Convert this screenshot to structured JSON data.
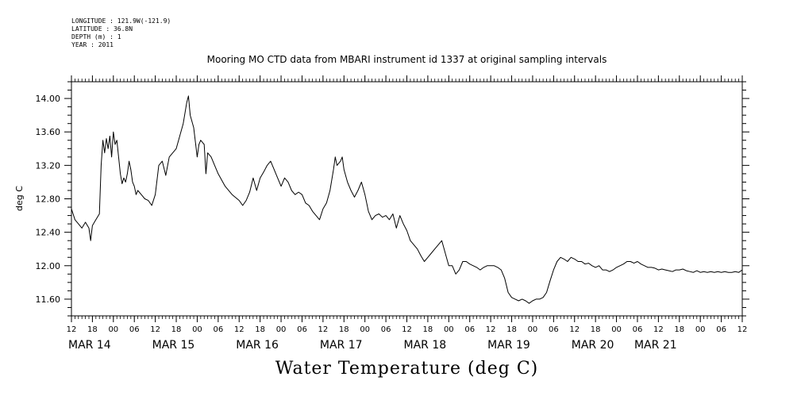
{
  "meta_lines": [
    "LONGITUDE : 121.9W(-121.9)",
    "LATITUDE : 36.8N",
    "DEPTH (m) : 1",
    "YEAR : 2011"
  ],
  "chart_data": {
    "type": "line",
    "title": "Mooring MO CTD data from MBARI instrument id 1337 at original sampling intervals",
    "xlabel": "Water Temperature (deg C)",
    "ylabel": "deg C",
    "x_units": "hours since MAR 14 00:00",
    "xlim": [
      -12,
      180
    ],
    "ylim": [
      11.4,
      14.2
    ],
    "y_ticks": [
      11.6,
      12.0,
      12.4,
      12.8,
      13.2,
      13.6,
      14.0
    ],
    "y_tick_labels": [
      "11.60",
      "12.00",
      "12.40",
      "12.80",
      "13.20",
      "13.60",
      "14.00"
    ],
    "x_hour_ticks": [
      -12,
      -6,
      0,
      6,
      12,
      18,
      24,
      30,
      36,
      42,
      48,
      54,
      60,
      66,
      72,
      78,
      84,
      90,
      96,
      102,
      108,
      114,
      120,
      126,
      132,
      138,
      144,
      150,
      156,
      162,
      168,
      174,
      180
    ],
    "x_hour_tick_labels": [
      "12",
      "18",
      "00",
      "06",
      "12",
      "18",
      "00",
      "06",
      "12",
      "18",
      "00",
      "06",
      "12",
      "18",
      "00",
      "06",
      "12",
      "18",
      "00",
      "06",
      "12",
      "18",
      "00",
      "06",
      "12",
      "18",
      "00",
      "06",
      "12",
      "18",
      "00",
      "06",
      "12"
    ],
    "date_labels": [
      {
        "x": -12,
        "label": "MAR 14"
      },
      {
        "x": 12,
        "label": "MAR 15"
      },
      {
        "x": 36,
        "label": "MAR 16"
      },
      {
        "x": 60,
        "label": "MAR 17"
      },
      {
        "x": 84,
        "label": "MAR 18"
      },
      {
        "x": 108,
        "label": "MAR 19"
      },
      {
        "x": 132,
        "label": "MAR 20"
      },
      {
        "x": 150,
        "label": "MAR 21"
      }
    ],
    "grid": false,
    "series": [
      {
        "color": "#000000",
        "points": [
          [
            -12,
            12.68
          ],
          [
            -11,
            12.55
          ],
          [
            -10,
            12.5
          ],
          [
            -9,
            12.45
          ],
          [
            -8,
            12.52
          ],
          [
            -7,
            12.45
          ],
          [
            -6.5,
            12.3
          ],
          [
            -6,
            12.48
          ],
          [
            -5,
            12.55
          ],
          [
            -4,
            12.62
          ],
          [
            -3.5,
            13.2
          ],
          [
            -3,
            13.5
          ],
          [
            -2.5,
            13.35
          ],
          [
            -2,
            13.52
          ],
          [
            -1.5,
            13.4
          ],
          [
            -1,
            13.55
          ],
          [
            -0.5,
            13.3
          ],
          [
            0,
            13.6
          ],
          [
            0.5,
            13.45
          ],
          [
            1,
            13.5
          ],
          [
            1.5,
            13.3
          ],
          [
            2,
            13.1
          ],
          [
            2.5,
            12.98
          ],
          [
            3,
            13.05
          ],
          [
            3.5,
            13.0
          ],
          [
            4,
            13.1
          ],
          [
            4.5,
            13.25
          ],
          [
            5,
            13.15
          ],
          [
            5.5,
            13.0
          ],
          [
            6,
            12.95
          ],
          [
            6.5,
            12.85
          ],
          [
            7,
            12.9
          ],
          [
            8,
            12.85
          ],
          [
            9,
            12.8
          ],
          [
            10,
            12.78
          ],
          [
            11,
            12.72
          ],
          [
            12,
            12.85
          ],
          [
            13,
            13.2
          ],
          [
            14,
            13.25
          ],
          [
            15,
            13.08
          ],
          [
            16,
            13.3
          ],
          [
            17,
            13.35
          ],
          [
            18,
            13.4
          ],
          [
            19,
            13.55
          ],
          [
            20,
            13.7
          ],
          [
            21,
            13.95
          ],
          [
            21.5,
            14.03
          ],
          [
            22,
            13.8
          ],
          [
            23,
            13.65
          ],
          [
            24,
            13.3
          ],
          [
            24.5,
            13.45
          ],
          [
            25,
            13.5
          ],
          [
            26,
            13.45
          ],
          [
            26.5,
            13.1
          ],
          [
            27,
            13.35
          ],
          [
            28,
            13.3
          ],
          [
            29,
            13.2
          ],
          [
            30,
            13.1
          ],
          [
            32,
            12.95
          ],
          [
            34,
            12.85
          ],
          [
            36,
            12.78
          ],
          [
            37,
            12.72
          ],
          [
            38,
            12.78
          ],
          [
            39,
            12.88
          ],
          [
            40,
            13.05
          ],
          [
            41,
            12.9
          ],
          [
            42,
            13.05
          ],
          [
            43,
            13.12
          ],
          [
            44,
            13.2
          ],
          [
            45,
            13.25
          ],
          [
            46,
            13.15
          ],
          [
            47,
            13.05
          ],
          [
            48,
            12.95
          ],
          [
            49,
            13.05
          ],
          [
            50,
            13.0
          ],
          [
            51,
            12.9
          ],
          [
            52,
            12.85
          ],
          [
            53,
            12.88
          ],
          [
            54,
            12.85
          ],
          [
            55,
            12.75
          ],
          [
            56,
            12.72
          ],
          [
            57,
            12.65
          ],
          [
            58,
            12.6
          ],
          [
            59,
            12.55
          ],
          [
            60,
            12.68
          ],
          [
            61,
            12.75
          ],
          [
            62,
            12.9
          ],
          [
            63,
            13.15
          ],
          [
            63.5,
            13.3
          ],
          [
            64,
            13.2
          ],
          [
            65,
            13.25
          ],
          [
            65.5,
            13.3
          ],
          [
            66,
            13.15
          ],
          [
            67,
            13.0
          ],
          [
            68,
            12.9
          ],
          [
            69,
            12.82
          ],
          [
            70,
            12.9
          ],
          [
            71,
            13.0
          ],
          [
            72,
            12.85
          ],
          [
            73,
            12.65
          ],
          [
            74,
            12.55
          ],
          [
            75,
            12.6
          ],
          [
            76,
            12.62
          ],
          [
            77,
            12.58
          ],
          [
            78,
            12.6
          ],
          [
            79,
            12.55
          ],
          [
            80,
            12.62
          ],
          [
            81,
            12.45
          ],
          [
            82,
            12.6
          ],
          [
            83,
            12.5
          ],
          [
            84,
            12.42
          ],
          [
            85,
            12.3
          ],
          [
            86,
            12.25
          ],
          [
            87,
            12.2
          ],
          [
            88,
            12.12
          ],
          [
            89,
            12.05
          ],
          [
            90,
            12.1
          ],
          [
            91,
            12.15
          ],
          [
            92,
            12.2
          ],
          [
            93,
            12.25
          ],
          [
            94,
            12.3
          ],
          [
            95,
            12.15
          ],
          [
            96,
            12.0
          ],
          [
            97,
            12.0
          ],
          [
            98,
            11.9
          ],
          [
            99,
            11.95
          ],
          [
            100,
            12.05
          ],
          [
            101,
            12.05
          ],
          [
            102,
            12.02
          ],
          [
            103,
            12.0
          ],
          [
            104,
            11.98
          ],
          [
            105,
            11.95
          ],
          [
            106,
            11.98
          ],
          [
            107,
            12.0
          ],
          [
            108,
            12.0
          ],
          [
            109,
            12.0
          ],
          [
            110,
            11.98
          ],
          [
            111,
            11.95
          ],
          [
            112,
            11.85
          ],
          [
            113,
            11.68
          ],
          [
            114,
            11.62
          ],
          [
            115,
            11.6
          ],
          [
            116,
            11.58
          ],
          [
            117,
            11.6
          ],
          [
            118,
            11.58
          ],
          [
            119,
            11.55
          ],
          [
            120,
            11.58
          ],
          [
            121,
            11.6
          ],
          [
            122,
            11.6
          ],
          [
            123,
            11.62
          ],
          [
            124,
            11.68
          ],
          [
            125,
            11.82
          ],
          [
            126,
            11.95
          ],
          [
            127,
            12.05
          ],
          [
            128,
            12.1
          ],
          [
            129,
            12.08
          ],
          [
            130,
            12.05
          ],
          [
            131,
            12.1
          ],
          [
            132,
            12.08
          ],
          [
            133,
            12.05
          ],
          [
            134,
            12.05
          ],
          [
            135,
            12.02
          ],
          [
            136,
            12.03
          ],
          [
            137,
            12.0
          ],
          [
            138,
            11.98
          ],
          [
            139,
            12.0
          ],
          [
            140,
            11.95
          ],
          [
            141,
            11.95
          ],
          [
            142,
            11.93
          ],
          [
            143,
            11.95
          ],
          [
            144,
            11.98
          ],
          [
            145,
            12.0
          ],
          [
            146,
            12.02
          ],
          [
            147,
            12.05
          ],
          [
            148,
            12.05
          ],
          [
            149,
            12.03
          ],
          [
            150,
            12.05
          ],
          [
            151,
            12.02
          ],
          [
            152,
            12.0
          ],
          [
            153,
            11.98
          ],
          [
            154,
            11.98
          ],
          [
            155,
            11.97
          ],
          [
            156,
            11.95
          ],
          [
            157,
            11.96
          ],
          [
            158,
            11.95
          ],
          [
            159,
            11.94
          ],
          [
            160,
            11.93
          ],
          [
            161,
            11.95
          ],
          [
            162,
            11.95
          ],
          [
            163,
            11.96
          ],
          [
            164,
            11.94
          ],
          [
            165,
            11.93
          ],
          [
            166,
            11.92
          ],
          [
            167,
            11.94
          ],
          [
            168,
            11.92
          ],
          [
            169,
            11.93
          ],
          [
            170,
            11.92
          ],
          [
            171,
            11.93
          ],
          [
            172,
            11.92
          ],
          [
            173,
            11.93
          ],
          [
            174,
            11.92
          ],
          [
            175,
            11.93
          ],
          [
            176,
            11.92
          ],
          [
            177,
            11.92
          ],
          [
            178,
            11.93
          ],
          [
            179,
            11.92
          ],
          [
            180,
            11.95
          ]
        ]
      }
    ]
  }
}
